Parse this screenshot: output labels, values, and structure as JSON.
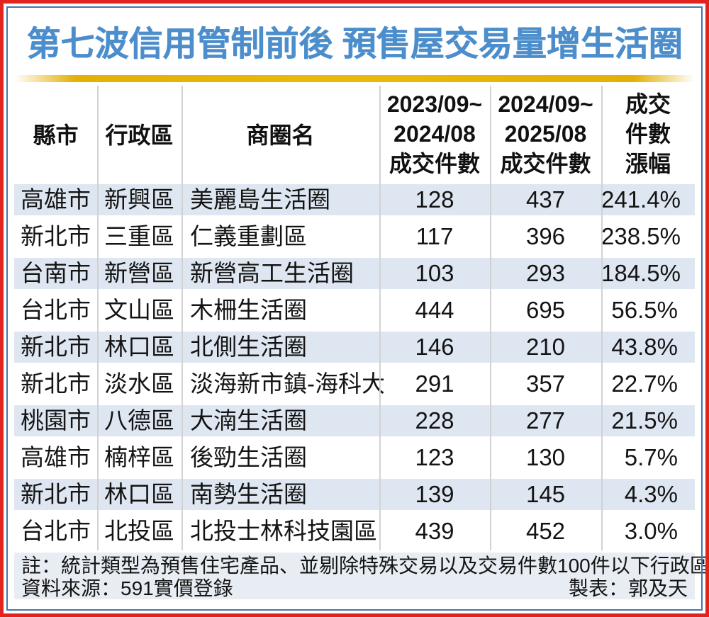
{
  "title": "第七波信用管制前後 預售屋交易量增生活圈",
  "table": {
    "header": {
      "col1": "縣市",
      "col2": "行政區",
      "col3": "商圈名",
      "col4_l1": "2023/09~",
      "col4_l2": "2024/08",
      "col4_l3": "成交件數",
      "col5_l1": "2024/09~",
      "col5_l2": "2025/08",
      "col5_l3": "成交件數",
      "col6_l1": "成交",
      "col6_l2": "件數",
      "col6_l3": "漲幅"
    },
    "rows": [
      [
        "高雄市",
        "新興區",
        "美麗島生活圈",
        "128",
        "437",
        "241.4%"
      ],
      [
        "新北市",
        "三重區",
        "仁義重劃區",
        "117",
        "396",
        "238.5%"
      ],
      [
        "台南市",
        "新營區",
        "新營高工生活圈",
        "103",
        "293",
        "184.5%"
      ],
      [
        "台北市",
        "文山區",
        "木柵生活圈",
        "444",
        "695",
        "56.5%"
      ],
      [
        "新北市",
        "林口區",
        "北側生活圈",
        "146",
        "210",
        "43.8%"
      ],
      [
        "新北市",
        "淡水區",
        "淡海新市鎮-海科大",
        "291",
        "357",
        "22.7%"
      ],
      [
        "桃園市",
        "八德區",
        "大湳生活圈",
        "228",
        "277",
        "21.5%"
      ],
      [
        "高雄市",
        "楠梓區",
        "後勁生活圈",
        "123",
        "130",
        "5.7%"
      ],
      [
        "新北市",
        "林口區",
        "南勢生活圈",
        "139",
        "145",
        "4.3%"
      ],
      [
        "台北市",
        "北投區",
        "北投士林科技園區",
        "439",
        "452",
        "3.0%"
      ]
    ]
  },
  "footer": {
    "note": "註：統計類型為預售住宅產品、並剔除特殊交易以及交易件數100件以下行政區",
    "source": "資料來源：591實價登錄",
    "credit": "製表：郭及天"
  },
  "colors": {
    "outer_border": "#e2241f",
    "inner_border": "#4576ad",
    "title_blue": "#4c8ecb",
    "gold_bar": "#e9ba0c",
    "row_alt_bg": "#dee7f1",
    "footer_bg": "#e8ecf3",
    "divider": "#d2d2d2"
  },
  "chart_data": {
    "type": "table",
    "title": "第七波信用管制前後 預售屋交易量增生活圈",
    "columns": [
      "縣市",
      "行政區",
      "商圈名",
      "2023/09~2024/08 成交件數",
      "2024/09~2025/08 成交件數",
      "成交件數漲幅"
    ],
    "rows": [
      {
        "city": "高雄市",
        "district": "新興區",
        "area": "美麗島生活圈",
        "deals_2023_09_2024_08": 128,
        "deals_2024_09_2025_08": 437,
        "change_pct": 241.4
      },
      {
        "city": "新北市",
        "district": "三重區",
        "area": "仁義重劃區",
        "deals_2023_09_2024_08": 117,
        "deals_2024_09_2025_08": 396,
        "change_pct": 238.5
      },
      {
        "city": "台南市",
        "district": "新營區",
        "area": "新營高工生活圈",
        "deals_2023_09_2024_08": 103,
        "deals_2024_09_2025_08": 293,
        "change_pct": 184.5
      },
      {
        "city": "台北市",
        "district": "文山區",
        "area": "木柵生活圈",
        "deals_2023_09_2024_08": 444,
        "deals_2024_09_2025_08": 695,
        "change_pct": 56.5
      },
      {
        "city": "新北市",
        "district": "林口區",
        "area": "北側生活圈",
        "deals_2023_09_2024_08": 146,
        "deals_2024_09_2025_08": 210,
        "change_pct": 43.8
      },
      {
        "city": "新北市",
        "district": "淡水區",
        "area": "淡海新市鎮-海科大",
        "deals_2023_09_2024_08": 291,
        "deals_2024_09_2025_08": 357,
        "change_pct": 22.7
      },
      {
        "city": "桃園市",
        "district": "八德區",
        "area": "大湳生活圈",
        "deals_2023_09_2024_08": 228,
        "deals_2024_09_2025_08": 277,
        "change_pct": 21.5
      },
      {
        "city": "高雄市",
        "district": "楠梓區",
        "area": "後勁生活圈",
        "deals_2023_09_2024_08": 123,
        "deals_2024_09_2025_08": 130,
        "change_pct": 5.7
      },
      {
        "city": "新北市",
        "district": "林口區",
        "area": "南勢生活圈",
        "deals_2023_09_2024_08": 139,
        "deals_2024_09_2025_08": 145,
        "change_pct": 4.3
      },
      {
        "city": "台北市",
        "district": "北投區",
        "area": "北投士林科技園區",
        "deals_2023_09_2024_08": 439,
        "deals_2024_09_2025_08": 452,
        "change_pct": 3.0
      }
    ],
    "note": "註：統計類型為預售住宅產品、並剔除特殊交易以及交易件數100件以下行政區",
    "source": "591實價登錄",
    "credit": "郭及天"
  }
}
